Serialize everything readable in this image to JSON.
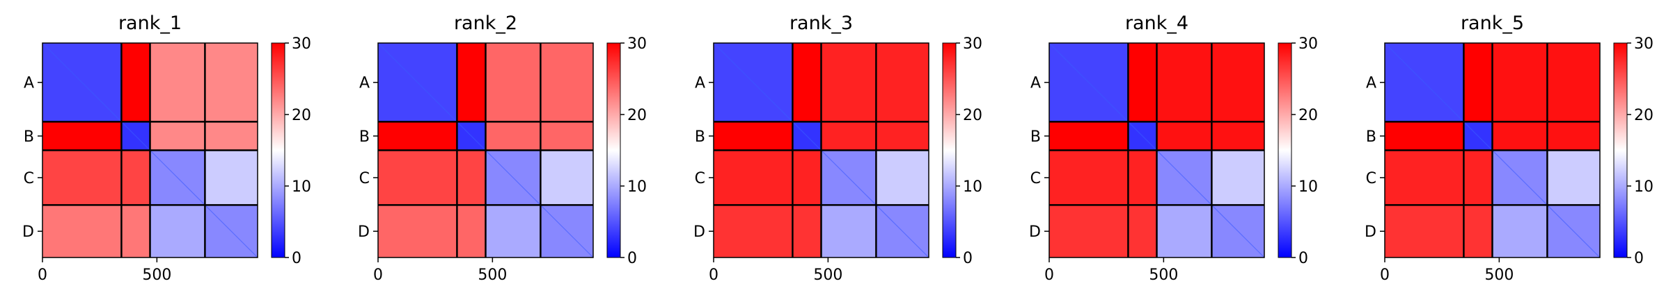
{
  "chart_data": [
    {
      "type": "heatmap",
      "title": "rank_1",
      "xticks": [
        "0",
        "500"
      ],
      "yticks": [
        "A",
        "B",
        "C",
        "D"
      ],
      "colorbar": {
        "ticks": [
          "0",
          "10",
          "20",
          "30"
        ],
        "range": [
          0,
          30
        ]
      },
      "blocks": {
        "row_labels": [
          "A",
          "B",
          "C",
          "D"
        ],
        "col_labels": [
          "A",
          "B",
          "C",
          "D"
        ],
        "values": [
          [
            4,
            30,
            22,
            22
          ],
          [
            30,
            3,
            22,
            22
          ],
          [
            26,
            26,
            8,
            12
          ],
          [
            23,
            23,
            10,
            8
          ]
        ]
      }
    },
    {
      "type": "heatmap",
      "title": "rank_2",
      "xticks": [
        "0",
        "500"
      ],
      "yticks": [
        "A",
        "B",
        "C",
        "D"
      ],
      "colorbar": {
        "ticks": [
          "0",
          "10",
          "20",
          "30"
        ],
        "range": [
          0,
          30
        ]
      },
      "blocks": {
        "row_labels": [
          "A",
          "B",
          "C",
          "D"
        ],
        "col_labels": [
          "A",
          "B",
          "C",
          "D"
        ],
        "values": [
          [
            4,
            30,
            24,
            24
          ],
          [
            30,
            3,
            24,
            24
          ],
          [
            26,
            26,
            8,
            12
          ],
          [
            24,
            24,
            10,
            8
          ]
        ]
      }
    },
    {
      "type": "heatmap",
      "title": "rank_3",
      "xticks": [
        "0",
        "500"
      ],
      "yticks": [
        "A",
        "B",
        "C",
        "D"
      ],
      "colorbar": {
        "ticks": [
          "0",
          "10",
          "20",
          "30"
        ],
        "range": [
          0,
          30
        ]
      },
      "blocks": {
        "row_labels": [
          "A",
          "B",
          "C",
          "D"
        ],
        "col_labels": [
          "A",
          "B",
          "C",
          "D"
        ],
        "values": [
          [
            4,
            30,
            28,
            28
          ],
          [
            30,
            3,
            28,
            28
          ],
          [
            28,
            28,
            8,
            12
          ],
          [
            27,
            27,
            10,
            8
          ]
        ]
      }
    },
    {
      "type": "heatmap",
      "title": "rank_4",
      "xticks": [
        "0",
        "500"
      ],
      "yticks": [
        "A",
        "B",
        "C",
        "D"
      ],
      "colorbar": {
        "ticks": [
          "0",
          "10",
          "20",
          "30"
        ],
        "range": [
          0,
          30
        ]
      },
      "blocks": {
        "row_labels": [
          "A",
          "B",
          "C",
          "D"
        ],
        "col_labels": [
          "A",
          "B",
          "C",
          "D"
        ],
        "values": [
          [
            4,
            30,
            29,
            29
          ],
          [
            30,
            3,
            29,
            29
          ],
          [
            28,
            28,
            8,
            12
          ],
          [
            27,
            27,
            10,
            8
          ]
        ]
      }
    },
    {
      "type": "heatmap",
      "title": "rank_5",
      "xticks": [
        "0",
        "500"
      ],
      "yticks": [
        "A",
        "B",
        "C",
        "D"
      ],
      "colorbar": {
        "ticks": [
          "0",
          "10",
          "20",
          "30"
        ],
        "range": [
          0,
          30
        ]
      },
      "blocks": {
        "row_labels": [
          "A",
          "B",
          "C",
          "D"
        ],
        "col_labels": [
          "A",
          "B",
          "C",
          "D"
        ],
        "values": [
          [
            4,
            30,
            29,
            29
          ],
          [
            30,
            3,
            29,
            29
          ],
          [
            28,
            28,
            8,
            12
          ],
          [
            27,
            27,
            10,
            8
          ]
        ]
      }
    }
  ],
  "colors": {
    "low": "#0000ff",
    "mid": "#ffffff",
    "high": "#ff0000",
    "grid": "#000000"
  }
}
